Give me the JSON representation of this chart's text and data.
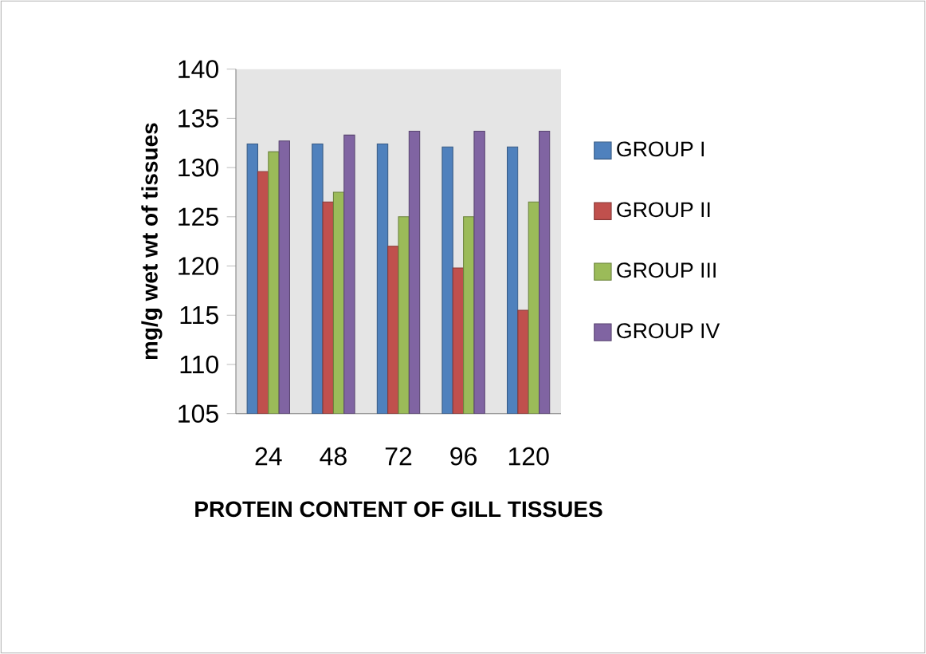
{
  "chart_data": {
    "type": "bar",
    "xlabel": "PROTEIN CONTENT OF GILL TISSUES",
    "ylabel": "mg/g wet wt of tissues",
    "categories": [
      "24",
      "48",
      "72",
      "96",
      "120"
    ],
    "series": [
      {
        "name": "GROUP I",
        "color": "#4f81bd",
        "values": [
          132.4,
          132.4,
          132.4,
          132.1,
          132.1
        ]
      },
      {
        "name": "GROUP II",
        "color": "#c0504d",
        "values": [
          129.6,
          126.5,
          122.0,
          119.8,
          115.5
        ]
      },
      {
        "name": "GROUP III",
        "color": "#9bbb59",
        "values": [
          131.6,
          127.5,
          125.0,
          125.0,
          126.5
        ]
      },
      {
        "name": "GROUP IV",
        "color": "#8064a2",
        "values": [
          132.7,
          133.3,
          133.7,
          133.7,
          133.7
        ]
      }
    ],
    "ylim": [
      105,
      140
    ],
    "yticks": [
      105,
      110,
      115,
      120,
      125,
      130,
      135,
      140
    ],
    "legend": "right",
    "grid": false
  }
}
